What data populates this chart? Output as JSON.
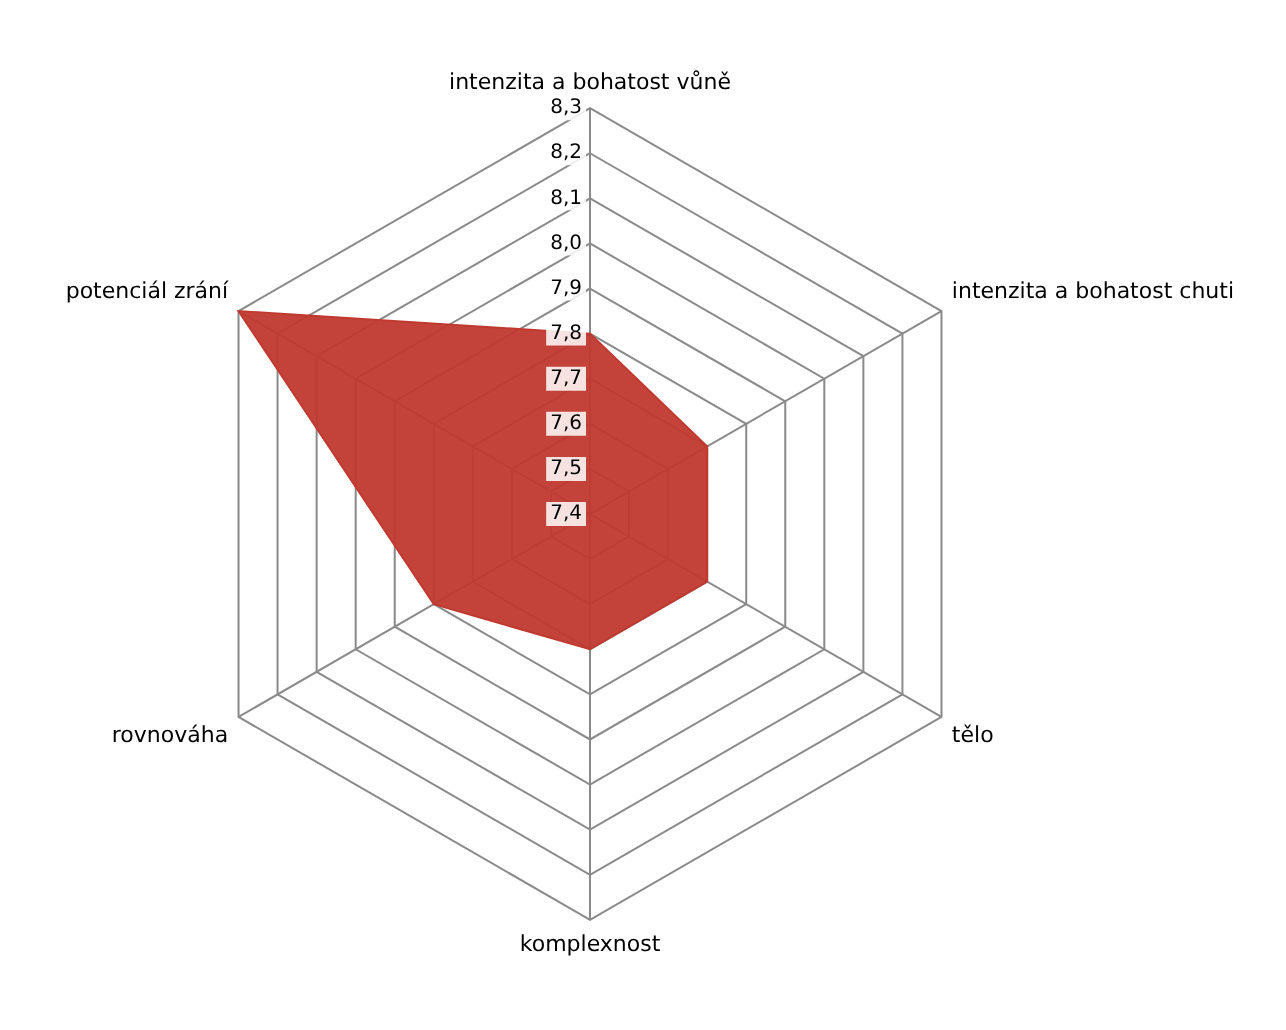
{
  "chart_data": {
    "type": "radar",
    "categories": [
      "intenzita a bohatost vůně",
      "intenzita a bohatost chuti",
      "tělo",
      "komplexnost",
      "rovnováha",
      "potenciál zrání"
    ],
    "series": [
      {
        "color": "#c0392f",
        "values": [
          7.8,
          7.7,
          7.7,
          7.7,
          7.8,
          8.3
        ]
      }
    ],
    "ylim": [
      7.4,
      8.3
    ],
    "yticks": [
      {
        "value": 7.4,
        "label": "7,4"
      },
      {
        "value": 7.5,
        "label": "7,5"
      },
      {
        "value": 7.6,
        "label": "7,6"
      },
      {
        "value": 7.7,
        "label": "7,7"
      },
      {
        "value": 7.8,
        "label": "7,8"
      },
      {
        "value": 7.9,
        "label": "7,9"
      },
      {
        "value": 8.0,
        "label": "8,0"
      },
      {
        "value": 8.1,
        "label": "8,1"
      },
      {
        "value": 8.2,
        "label": "8,2"
      },
      {
        "value": 8.3,
        "label": "8,3"
      }
    ],
    "grid": true,
    "legend": false,
    "marker": "none"
  }
}
